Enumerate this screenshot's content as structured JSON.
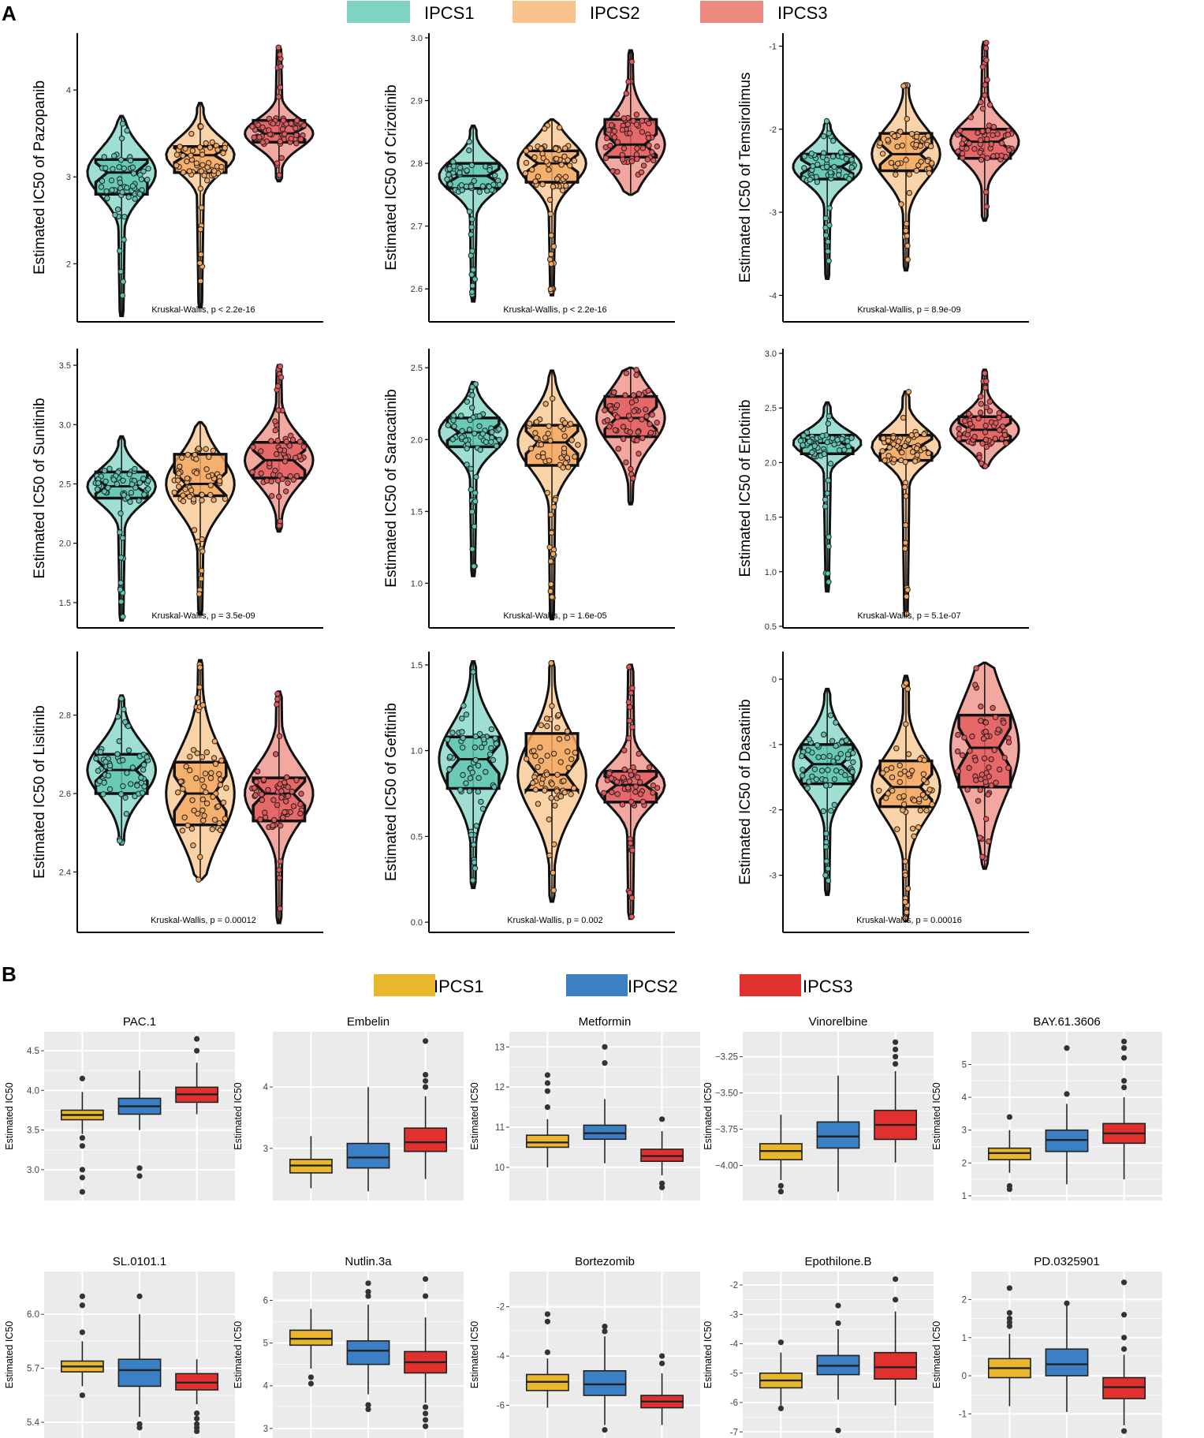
{
  "panel_a": {
    "label": "A",
    "legend": [
      {
        "name": "IPCS1",
        "color": "#7fd3c3"
      },
      {
        "name": "IPCS2",
        "color": "#f8c48c"
      },
      {
        "name": "IPCS3",
        "color": "#ee8b80"
      }
    ],
    "colors": {
      "fill": [
        "#7fd3c3",
        "#f8c48c",
        "#ee8b80"
      ],
      "box": [
        "#5cc4b2",
        "#f5a85e",
        "#e4575a"
      ]
    }
  },
  "panel_b": {
    "label": "B",
    "legend": [
      {
        "name": "IPCS1",
        "color": "#e8b72c"
      },
      {
        "name": "IPCS2",
        "color": "#3b7fc4"
      },
      {
        "name": "IPCS3",
        "color": "#e0312f"
      }
    ],
    "background": "#ebebeb"
  },
  "chart_data": [
    {
      "type": "box",
      "panel": "A",
      "ylabel": "Estimated IC50 of Pazopanib",
      "annotation": "Kruskal-Wallis, p < 2.2e-16",
      "yticks": [
        2,
        3,
        4
      ],
      "ylim": [
        1.35,
        4.6
      ],
      "series": [
        {
          "name": "IPCS1",
          "q1": 2.8,
          "median": 3.05,
          "q3": 3.2,
          "vmin": 1.4,
          "vmax": 3.7
        },
        {
          "name": "IPCS2",
          "q1": 3.05,
          "median": 3.25,
          "q3": 3.35,
          "vmin": 1.5,
          "vmax": 3.85
        },
        {
          "name": "IPCS3",
          "q1": 3.4,
          "median": 3.5,
          "q3": 3.65,
          "vmin": 2.95,
          "vmax": 4.5
        }
      ]
    },
    {
      "type": "box",
      "panel": "A",
      "ylabel": "Estimated IC50 of  Crizotinib",
      "annotation": "Kruskal-Wallis, p < 2.2e-16",
      "yticks": [
        2.6,
        2.7,
        2.8,
        2.9,
        3.0
      ],
      "ylim": [
        2.55,
        3.0
      ],
      "series": [
        {
          "name": "IPCS1",
          "q1": 2.76,
          "median": 2.78,
          "q3": 2.8,
          "vmin": 2.58,
          "vmax": 2.86
        },
        {
          "name": "IPCS2",
          "q1": 2.77,
          "median": 2.8,
          "q3": 2.82,
          "vmin": 2.59,
          "vmax": 2.87
        },
        {
          "name": "IPCS3",
          "q1": 2.81,
          "median": 2.83,
          "q3": 2.87,
          "vmin": 2.75,
          "vmax": 2.98
        }
      ]
    },
    {
      "type": "box",
      "panel": "A",
      "ylabel": "Estimated IC50 of Temsirolimus",
      "annotation": "Kruskal-Wallis, p = 8.9e-09",
      "yticks": [
        -4,
        -3,
        -2,
        -1
      ],
      "ylim": [
        -4.3,
        -0.9
      ],
      "series": [
        {
          "name": "IPCS1",
          "q1": -2.6,
          "median": -2.45,
          "q3": -2.3,
          "vmin": -3.8,
          "vmax": -1.9
        },
        {
          "name": "IPCS2",
          "q1": -2.5,
          "median": -2.3,
          "q3": -2.05,
          "vmin": -3.7,
          "vmax": -1.45
        },
        {
          "name": "IPCS3",
          "q1": -2.35,
          "median": -2.15,
          "q3": -2.0,
          "vmin": -3.1,
          "vmax": -0.95
        }
      ]
    },
    {
      "type": "box",
      "panel": "A",
      "ylabel": "Estimated IC50 of Sunitinib",
      "annotation": "Kruskal-Wallis, p = 3.5e-09",
      "yticks": [
        1.5,
        2.0,
        2.5,
        3.0,
        3.5
      ],
      "ylim": [
        1.3,
        3.6
      ],
      "series": [
        {
          "name": "IPCS1",
          "q1": 2.38,
          "median": 2.48,
          "q3": 2.6,
          "vmin": 1.35,
          "vmax": 2.9
        },
        {
          "name": "IPCS2",
          "q1": 2.4,
          "median": 2.5,
          "q3": 2.75,
          "vmin": 1.4,
          "vmax": 3.02
        },
        {
          "name": "IPCS3",
          "q1": 2.55,
          "median": 2.7,
          "q3": 2.85,
          "vmin": 2.1,
          "vmax": 3.5
        }
      ]
    },
    {
      "type": "box",
      "panel": "A",
      "ylabel": "Estimated IC50 of Saracatinib",
      "annotation": "Kruskal-Wallis, p = 1.6e-05",
      "yticks": [
        1.0,
        1.5,
        2.0,
        2.5
      ],
      "ylim": [
        0.7,
        2.6
      ],
      "series": [
        {
          "name": "IPCS1",
          "q1": 1.95,
          "median": 2.05,
          "q3": 2.15,
          "vmin": 1.05,
          "vmax": 2.4
        },
        {
          "name": "IPCS2",
          "q1": 1.82,
          "median": 1.98,
          "q3": 2.1,
          "vmin": 0.75,
          "vmax": 2.48
        },
        {
          "name": "IPCS3",
          "q1": 2.02,
          "median": 2.15,
          "q3": 2.3,
          "vmin": 1.55,
          "vmax": 2.5
        }
      ]
    },
    {
      "type": "box",
      "panel": "A",
      "ylabel": "Estimated IC50 of Erlotinib",
      "annotation": "Kruskal-Wallis, p = 5.1e-07",
      "yticks": [
        0.5,
        1.0,
        1.5,
        2.0,
        2.5,
        3.0
      ],
      "ylim": [
        0.5,
        3.0
      ],
      "series": [
        {
          "name": "IPCS1",
          "q1": 2.08,
          "median": 2.18,
          "q3": 2.25,
          "vmin": 0.82,
          "vmax": 2.55
        },
        {
          "name": "IPCS2",
          "q1": 2.02,
          "median": 2.15,
          "q3": 2.25,
          "vmin": 0.6,
          "vmax": 2.65
        },
        {
          "name": "IPCS3",
          "q1": 2.2,
          "median": 2.3,
          "q3": 2.42,
          "vmin": 1.95,
          "vmax": 2.85
        }
      ]
    },
    {
      "type": "box",
      "panel": "A",
      "ylabel": "Estimated IC50 of Lisitinib",
      "annotation": "Kruskal-Wallis, p = 0.00012",
      "yticks": [
        2.4,
        2.6,
        2.8
      ],
      "ylim": [
        2.25,
        2.95
      ],
      "series": [
        {
          "name": "IPCS1",
          "q1": 2.6,
          "median": 2.66,
          "q3": 2.7,
          "vmin": 2.47,
          "vmax": 2.85
        },
        {
          "name": "IPCS2",
          "q1": 2.52,
          "median": 2.6,
          "q3": 2.68,
          "vmin": 2.38,
          "vmax": 2.94
        },
        {
          "name": "IPCS3",
          "q1": 2.53,
          "median": 2.6,
          "q3": 2.64,
          "vmin": 2.27,
          "vmax": 2.86
        }
      ]
    },
    {
      "type": "box",
      "panel": "A",
      "ylabel": "Estimated IC50 of Gefitinib",
      "annotation": "Kruskal-Wallis, p = 0.002",
      "yticks": [
        0.0,
        0.5,
        1.0,
        1.5
      ],
      "ylim": [
        -0.05,
        1.55
      ],
      "series": [
        {
          "name": "IPCS1",
          "q1": 0.78,
          "median": 0.95,
          "q3": 1.08,
          "vmin": 0.2,
          "vmax": 1.52
        },
        {
          "name": "IPCS2",
          "q1": 0.77,
          "median": 0.86,
          "q3": 1.1,
          "vmin": 0.12,
          "vmax": 1.52
        },
        {
          "name": "IPCS3",
          "q1": 0.7,
          "median": 0.8,
          "q3": 0.88,
          "vmin": 0.02,
          "vmax": 1.5
        }
      ]
    },
    {
      "type": "box",
      "panel": "A",
      "ylabel": "Estimated IC50 of  Dasatinib",
      "annotation": "Kruskal-Wallis, p = 0.00016",
      "yticks": [
        -3,
        -2,
        -1,
        0
      ],
      "ylim": [
        -3.85,
        0.35
      ],
      "series": [
        {
          "name": "IPCS1",
          "q1": -1.6,
          "median": -1.3,
          "q3": -1.0,
          "vmin": -3.3,
          "vmax": -0.15
        },
        {
          "name": "IPCS2",
          "q1": -1.95,
          "median": -1.65,
          "q3": -1.25,
          "vmin": -3.7,
          "vmax": 0.05
        },
        {
          "name": "IPCS3",
          "q1": -1.65,
          "median": -1.05,
          "q3": -0.55,
          "vmin": -2.9,
          "vmax": 0.25
        }
      ]
    },
    {
      "type": "box",
      "panel": "B",
      "title": "PAC.1",
      "ylabel": "Estimated IC50",
      "yticks": [
        3.0,
        3.5,
        4.0,
        4.5
      ],
      "ylim": [
        2.65,
        4.7
      ],
      "series": [
        {
          "name": "IPCS1",
          "q1": 3.63,
          "median": 3.69,
          "q3": 3.75,
          "wlo": 3.45,
          "whi": 3.98,
          "outliers": [
            3.4,
            3.3,
            3.0,
            2.9,
            2.72,
            4.15
          ]
        },
        {
          "name": "IPCS2",
          "q1": 3.7,
          "median": 3.8,
          "q3": 3.9,
          "wlo": 3.5,
          "whi": 4.25,
          "outliers": [
            3.02,
            2.92
          ]
        },
        {
          "name": "IPCS3",
          "q1": 3.85,
          "median": 3.95,
          "q3": 4.04,
          "wlo": 3.7,
          "whi": 4.35,
          "outliers": [
            4.5,
            4.65
          ]
        }
      ]
    },
    {
      "type": "box",
      "panel": "B",
      "title": "Embelin",
      "ylabel": "Estimated IC50",
      "yticks": [
        3,
        4
      ],
      "ylim": [
        2.2,
        4.85
      ],
      "series": [
        {
          "name": "IPCS1",
          "q1": 2.6,
          "median": 2.72,
          "q3": 2.82,
          "wlo": 2.35,
          "whi": 3.2,
          "outliers": []
        },
        {
          "name": "IPCS2",
          "q1": 2.68,
          "median": 2.85,
          "q3": 3.08,
          "wlo": 2.3,
          "whi": 4.0,
          "outliers": []
        },
        {
          "name": "IPCS3",
          "q1": 2.95,
          "median": 3.1,
          "q3": 3.33,
          "wlo": 2.5,
          "whi": 3.85,
          "outliers": [
            4.0,
            4.1,
            4.2,
            4.75
          ]
        }
      ]
    },
    {
      "type": "box",
      "panel": "B",
      "title": "Metformin",
      "ylabel": "Estimated IC50",
      "yticks": [
        10,
        11,
        12,
        13
      ],
      "ylim": [
        9.25,
        13.3
      ],
      "series": [
        {
          "name": "IPCS1",
          "q1": 10.5,
          "median": 10.62,
          "q3": 10.8,
          "wlo": 10.0,
          "whi": 11.2,
          "outliers": [
            11.5,
            11.9,
            12.1,
            12.3
          ]
        },
        {
          "name": "IPCS2",
          "q1": 10.7,
          "median": 10.85,
          "q3": 11.05,
          "wlo": 10.1,
          "whi": 11.7,
          "outliers": [
            12.6,
            13.0
          ]
        },
        {
          "name": "IPCS3",
          "q1": 10.15,
          "median": 10.28,
          "q3": 10.45,
          "wlo": 9.8,
          "whi": 10.9,
          "outliers": [
            11.2,
            9.5,
            9.6
          ]
        }
      ]
    },
    {
      "type": "box",
      "panel": "B",
      "title": "Vinorelbine",
      "ylabel": "Estimated IC50",
      "yticks": [
        -4.0,
        -3.75,
        -3.5,
        -3.25
      ],
      "ylim": [
        -4.22,
        -3.1
      ],
      "series": [
        {
          "name": "IPCS1",
          "q1": -3.96,
          "median": -3.9,
          "q3": -3.85,
          "wlo": -4.1,
          "whi": -3.65,
          "outliers": [
            -4.14,
            -4.18
          ]
        },
        {
          "name": "IPCS2",
          "q1": -3.88,
          "median": -3.8,
          "q3": -3.7,
          "wlo": -4.18,
          "whi": -3.38,
          "outliers": []
        },
        {
          "name": "IPCS3",
          "q1": -3.82,
          "median": -3.72,
          "q3": -3.62,
          "wlo": -3.98,
          "whi": -3.35,
          "outliers": [
            -3.3,
            -3.25,
            -3.2,
            -3.15
          ]
        }
      ]
    },
    {
      "type": "box",
      "panel": "B",
      "title": "BAY.61.3606",
      "ylabel": "Estimated IC50",
      "yticks": [
        1,
        2,
        3,
        4,
        5
      ],
      "ylim": [
        0.95,
        5.9
      ],
      "series": [
        {
          "name": "IPCS1",
          "q1": 2.1,
          "median": 2.3,
          "q3": 2.45,
          "wlo": 1.7,
          "whi": 3.0,
          "outliers": [
            3.4,
            1.3,
            1.2
          ]
        },
        {
          "name": "IPCS2",
          "q1": 2.35,
          "median": 2.7,
          "q3": 3.0,
          "wlo": 1.35,
          "whi": 3.8,
          "outliers": [
            4.1,
            5.5
          ]
        },
        {
          "name": "IPCS3",
          "q1": 2.6,
          "median": 2.9,
          "q3": 3.2,
          "wlo": 1.5,
          "whi": 4.0,
          "outliers": [
            4.3,
            4.5,
            5.2,
            5.5,
            5.7
          ]
        }
      ]
    },
    {
      "type": "box",
      "panel": "B",
      "title": "SL.0101.1",
      "ylabel": "Estimated IC50",
      "yticks": [
        5.4,
        5.7,
        6.0
      ],
      "ylim": [
        5.33,
        6.22
      ],
      "series": [
        {
          "name": "IPCS1",
          "q1": 5.68,
          "median": 5.71,
          "q3": 5.74,
          "wlo": 5.6,
          "whi": 5.85,
          "outliers": [
            5.55,
            5.9,
            6.05,
            6.1
          ]
        },
        {
          "name": "IPCS2",
          "q1": 5.6,
          "median": 5.69,
          "q3": 5.75,
          "wlo": 5.43,
          "whi": 6.0,
          "outliers": [
            5.39,
            5.37,
            6.1
          ]
        },
        {
          "name": "IPCS3",
          "q1": 5.58,
          "median": 5.62,
          "q3": 5.67,
          "wlo": 5.5,
          "whi": 5.75,
          "outliers": [
            5.45,
            5.42,
            5.39,
            5.37,
            5.35
          ]
        }
      ]
    },
    {
      "type": "box",
      "panel": "B",
      "title": "Nutlin.3a",
      "ylabel": "Estimated IC50",
      "yticks": [
        3,
        4,
        5,
        6
      ],
      "ylim": [
        2.85,
        6.6
      ],
      "series": [
        {
          "name": "IPCS1",
          "q1": 4.95,
          "median": 5.1,
          "q3": 5.3,
          "wlo": 4.4,
          "whi": 5.8,
          "outliers": [
            4.2,
            4.05
          ]
        },
        {
          "name": "IPCS2",
          "q1": 4.5,
          "median": 4.82,
          "q3": 5.05,
          "wlo": 3.8,
          "whi": 5.9,
          "outliers": [
            3.55,
            3.45,
            6.1,
            6.2,
            6.4
          ]
        },
        {
          "name": "IPCS3",
          "q1": 4.3,
          "median": 4.55,
          "q3": 4.8,
          "wlo": 3.6,
          "whi": 5.6,
          "outliers": [
            3.5,
            3.35,
            3.2,
            3.05,
            6.1,
            6.5
          ]
        }
      ]
    },
    {
      "type": "box",
      "panel": "B",
      "title": "Bortezomib",
      "ylabel": "Estimated IC50",
      "yticks": [
        -6,
        -4,
        -2
      ],
      "ylim": [
        -7.2,
        -0.7
      ],
      "series": [
        {
          "name": "IPCS1",
          "q1": -5.4,
          "median": -5.05,
          "q3": -4.75,
          "wlo": -6.1,
          "whi": -4.1,
          "outliers": [
            -3.85,
            -2.3,
            -2.6
          ]
        },
        {
          "name": "IPCS2",
          "q1": -5.6,
          "median": -5.15,
          "q3": -4.6,
          "wlo": -6.8,
          "whi": -3.2,
          "outliers": [
            -2.8,
            -3.0,
            -7.0
          ]
        },
        {
          "name": "IPCS3",
          "q1": -6.1,
          "median": -5.85,
          "q3": -5.6,
          "wlo": -6.8,
          "whi": -4.7,
          "outliers": [
            -4.0,
            -4.3
          ]
        }
      ]
    },
    {
      "type": "box",
      "panel": "B",
      "title": "Epothilone.B",
      "ylabel": "Estimated IC50",
      "yticks": [
        -7,
        -6,
        -5,
        -4,
        -3,
        -2
      ],
      "ylim": [
        -7.1,
        -1.65
      ],
      "series": [
        {
          "name": "IPCS1",
          "q1": -5.5,
          "median": -5.25,
          "q3": -5.0,
          "wlo": -6.1,
          "whi": -4.3,
          "outliers": [
            -3.95,
            -6.2
          ]
        },
        {
          "name": "IPCS2",
          "q1": -5.05,
          "median": -4.75,
          "q3": -4.4,
          "wlo": -5.9,
          "whi": -3.5,
          "outliers": [
            -3.3,
            -2.7,
            -6.95
          ]
        },
        {
          "name": "IPCS3",
          "q1": -5.2,
          "median": -4.8,
          "q3": -4.3,
          "wlo": -6.1,
          "whi": -2.9,
          "outliers": [
            -2.5,
            -1.8
          ]
        }
      ]
    },
    {
      "type": "box",
      "panel": "B",
      "title": "PD.0325901",
      "ylabel": "Estimated IC50",
      "yticks": [
        -1,
        0,
        1,
        2
      ],
      "ylim": [
        -1.55,
        2.65
      ],
      "series": [
        {
          "name": "IPCS1",
          "q1": -0.05,
          "median": 0.2,
          "q3": 0.45,
          "wlo": -0.8,
          "whi": 1.1,
          "outliers": [
            1.3,
            1.4,
            1.5,
            1.65,
            2.3
          ]
        },
        {
          "name": "IPCS2",
          "q1": 0.0,
          "median": 0.3,
          "q3": 0.7,
          "wlo": -0.95,
          "whi": 1.85,
          "outliers": [
            1.9
          ]
        },
        {
          "name": "IPCS3",
          "q1": -0.6,
          "median": -0.3,
          "q3": -0.05,
          "wlo": -1.3,
          "whi": 0.55,
          "outliers": [
            0.7,
            1.0,
            1.6,
            2.45,
            -1.45
          ]
        }
      ]
    }
  ]
}
